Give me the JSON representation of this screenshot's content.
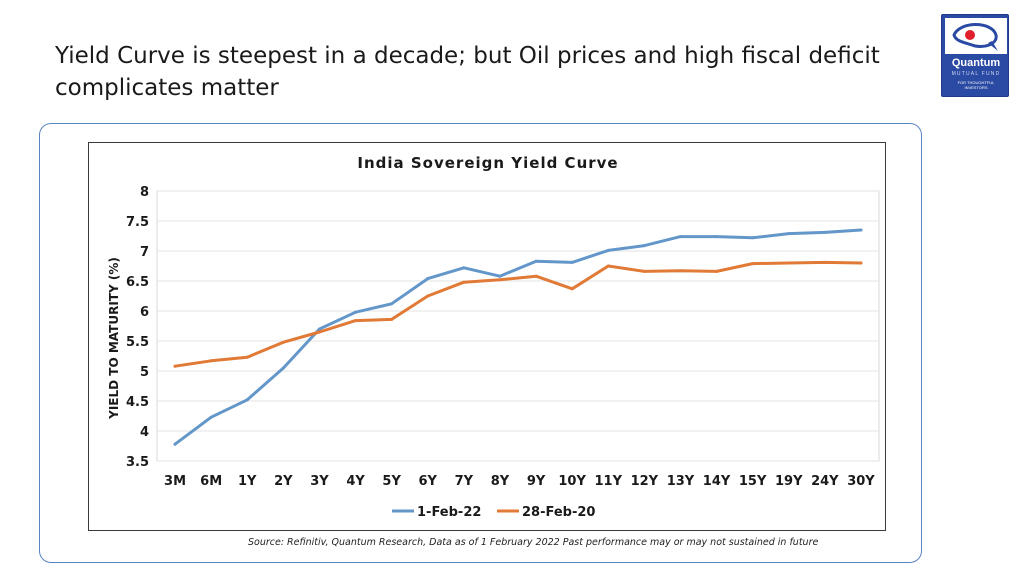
{
  "slide": {
    "title_line1": "Yield Curve is steepest in a decade; but Oil prices and high fiscal deficit",
    "title_line2": "complicates matter",
    "source": "Source: Refinitiv, Quantum Research, Data as of 1 February 2022 Past performance may or may not sustained in future"
  },
  "logo": {
    "name": "Quantum",
    "line2": "MUTUAL FUND",
    "tagline1": "FOR THOUGHTFUL",
    "tagline2": "INVESTORS",
    "icon": "quantum-logo-icon",
    "bg_color": "#2b4aa3"
  },
  "chart_data": {
    "type": "line",
    "title": "India Sovereign Yield Curve",
    "xlabel": "",
    "ylabel": "YIELD TO MATURITY (%)",
    "ylim": [
      3.5,
      8
    ],
    "yticks": [
      "3.5",
      "4",
      "4.5",
      "5",
      "5.5",
      "6",
      "6.5",
      "7",
      "7.5",
      "8"
    ],
    "categories": [
      "3M",
      "6M",
      "1Y",
      "2Y",
      "3Y",
      "4Y",
      "5Y",
      "6Y",
      "7Y",
      "8Y",
      "9Y",
      "10Y",
      "11Y",
      "12Y",
      "13Y",
      "14Y",
      "15Y",
      "19Y",
      "24Y",
      "30Y"
    ],
    "series": [
      {
        "name": "1-Feb-22",
        "color": "#6497c9",
        "values": [
          3.78,
          4.23,
          4.52,
          5.05,
          5.7,
          5.98,
          6.12,
          6.54,
          6.72,
          6.58,
          6.83,
          6.81,
          7.01,
          7.09,
          7.24,
          7.24,
          7.22,
          7.29,
          7.31,
          7.35
        ]
      },
      {
        "name": "28-Feb-20",
        "color": "#e07a36",
        "values": [
          5.08,
          5.17,
          5.23,
          5.48,
          5.65,
          5.84,
          5.86,
          6.25,
          6.48,
          6.52,
          6.58,
          6.37,
          6.75,
          6.66,
          6.67,
          6.66,
          6.79,
          6.8,
          6.81,
          6.8
        ]
      }
    ],
    "grid": true,
    "legend_position": "bottom"
  }
}
